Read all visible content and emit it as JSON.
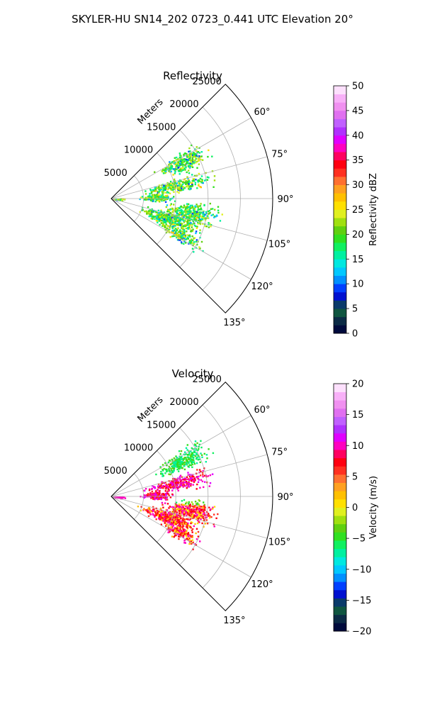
{
  "figure": {
    "suptitle": "SKYLER-HU  SN14_202  0723_0.441 UTC Elevation 20°"
  },
  "chart_data": [
    {
      "type": "heatmap",
      "title": "Reflectivity",
      "projection": "polar-sector",
      "range_label": "Meters",
      "range_ticks": [
        5000,
        10000,
        15000,
        20000,
        25000
      ],
      "range_max": 25000,
      "azimuth_range_deg": [
        45,
        135
      ],
      "azimuth_tick_labels": [
        "60°",
        "75°",
        "90°",
        "105°",
        "120°",
        "135°"
      ],
      "grid": true,
      "colorbar": {
        "label": "Reflectivity dBZ",
        "min": 0,
        "max": 50,
        "ticks": [
          "0",
          "5",
          "10",
          "15",
          "20",
          "25",
          "30",
          "35",
          "40",
          "45",
          "50"
        ],
        "colors": [
          "#000a3c",
          "#0b2a45",
          "#0f5540",
          "#0a3a6a",
          "#0010d0",
          "#0040ff",
          "#0090ff",
          "#00c8ff",
          "#00e8e0",
          "#00f0a0",
          "#10f060",
          "#30e020",
          "#60d010",
          "#a0e010",
          "#e0f020",
          "#ffe000",
          "#ffc000",
          "#ffa020",
          "#ff7030",
          "#ff3020",
          "#ff0010",
          "#ff0060",
          "#ff00c0",
          "#e000ff",
          "#b030ff",
          "#c060ff",
          "#e070f0",
          "#f090f0",
          "#f8b0f8",
          "#fde0fd"
        ]
      }
    },
    {
      "type": "heatmap",
      "title": "Velocity",
      "projection": "polar-sector",
      "range_label": "Meters",
      "range_ticks": [
        5000,
        10000,
        15000,
        20000,
        25000
      ],
      "range_max": 25000,
      "azimuth_range_deg": [
        45,
        135
      ],
      "azimuth_tick_labels": [
        "60°",
        "75°",
        "90°",
        "105°",
        "120°",
        "135°"
      ],
      "grid": true,
      "colorbar": {
        "label": "Velocity (m/s)",
        "min": -20,
        "max": 20,
        "ticks": [
          "−20",
          "−15",
          "−10",
          "−5",
          "0",
          "5",
          "10",
          "15",
          "20"
        ],
        "colors": [
          "#000a3c",
          "#0b2a45",
          "#0f5540",
          "#0a3a6a",
          "#0010d0",
          "#0040ff",
          "#0090ff",
          "#00c8ff",
          "#00e8e0",
          "#00f0a0",
          "#10f060",
          "#30e020",
          "#60d010",
          "#a0e010",
          "#e0f020",
          "#ffe000",
          "#ffc000",
          "#ffa020",
          "#ff7030",
          "#ff3020",
          "#ff0010",
          "#ff0060",
          "#ff00c0",
          "#e000ff",
          "#b030ff",
          "#c060ff",
          "#e070f0",
          "#f090f0",
          "#f8b0f8",
          "#fde0fd"
        ]
      }
    }
  ]
}
